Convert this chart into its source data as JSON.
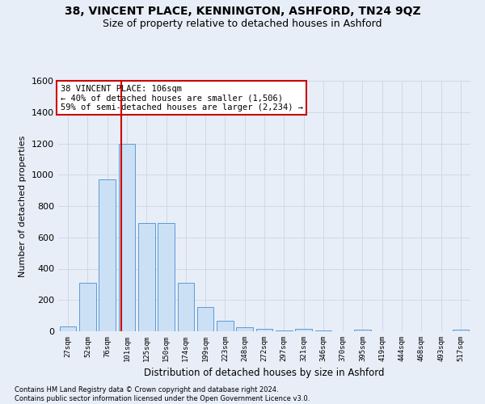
{
  "title1": "38, VINCENT PLACE, KENNINGTON, ASHFORD, TN24 9QZ",
  "title2": "Size of property relative to detached houses in Ashford",
  "xlabel": "Distribution of detached houses by size in Ashford",
  "ylabel": "Number of detached properties",
  "footnote": "Contains HM Land Registry data © Crown copyright and database right 2024.\nContains public sector information licensed under the Open Government Licence v3.0.",
  "categories": [
    "27sqm",
    "52sqm",
    "76sqm",
    "101sqm",
    "125sqm",
    "150sqm",
    "174sqm",
    "199sqm",
    "223sqm",
    "248sqm",
    "272sqm",
    "297sqm",
    "321sqm",
    "346sqm",
    "370sqm",
    "395sqm",
    "419sqm",
    "444sqm",
    "468sqm",
    "493sqm",
    "517sqm"
  ],
  "values": [
    30,
    310,
    970,
    1200,
    690,
    690,
    310,
    155,
    65,
    25,
    15,
    5,
    15,
    5,
    0,
    10,
    0,
    0,
    0,
    0,
    10
  ],
  "bar_color": "#cce0f5",
  "bar_edge_color": "#5b9bd5",
  "vline_x": 2.72,
  "vline_color": "#cc0000",
  "ylim": [
    0,
    1600
  ],
  "yticks": [
    0,
    200,
    400,
    600,
    800,
    1000,
    1200,
    1400,
    1600
  ],
  "annotation_text": "38 VINCENT PLACE: 106sqm\n← 40% of detached houses are smaller (1,506)\n59% of semi-detached houses are larger (2,234) →",
  "annotation_box_color": "#ffffff",
  "annotation_box_edge": "#cc0000",
  "grid_color": "#d0d8e8",
  "background_color": "#e8eef8",
  "title1_fontsize": 10,
  "title2_fontsize": 9,
  "annot_fontsize": 7.5
}
